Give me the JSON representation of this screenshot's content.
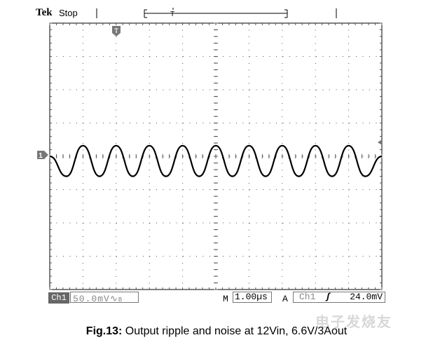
{
  "header": {
    "brand": "Tek",
    "status": "Stop"
  },
  "markers": {
    "trigger_pos": "T",
    "channel": "1"
  },
  "footer": {
    "channel": "Ch1",
    "vscale": "50.0mV",
    "vscale_suffix": "∿",
    "bw_limit": "B",
    "timebase_prefix": "M",
    "timebase": "1.00µs",
    "trigger_prefix": "A",
    "trigger_source": "Ch1",
    "trigger_slope": "ʃ",
    "trigger_level": "24.0mV"
  },
  "caption": {
    "bold": "Fig.13:",
    "text": " Output ripple and noise at 12Vin, 6.6V/3Aout"
  },
  "watermark": "电子发烧友",
  "colors": {
    "trace": "#000000",
    "grid": "#555555",
    "panel": "#777777"
  },
  "chart_data": {
    "type": "line",
    "x_unit": "µs",
    "y_unit": "mV",
    "xlim": [
      -5,
      5
    ],
    "ylim": [
      -200,
      200
    ],
    "grid": true,
    "x": [
      -5.0,
      -4.5,
      -4.0,
      -3.5,
      -3.0,
      -2.5,
      -2.0,
      -1.5,
      -1.0,
      -0.5,
      0.0,
      0.5,
      1.0,
      1.5,
      2.0,
      2.5,
      3.0,
      3.5,
      4.0,
      4.5,
      5.0
    ],
    "series": [
      {
        "values": [
          0,
          -30,
          16,
          -30,
          16,
          -30,
          16,
          -30,
          16,
          -30,
          16,
          -30,
          16,
          -30,
          16,
          -30,
          16,
          -30,
          16,
          -30,
          0
        ]
      }
    ]
  }
}
